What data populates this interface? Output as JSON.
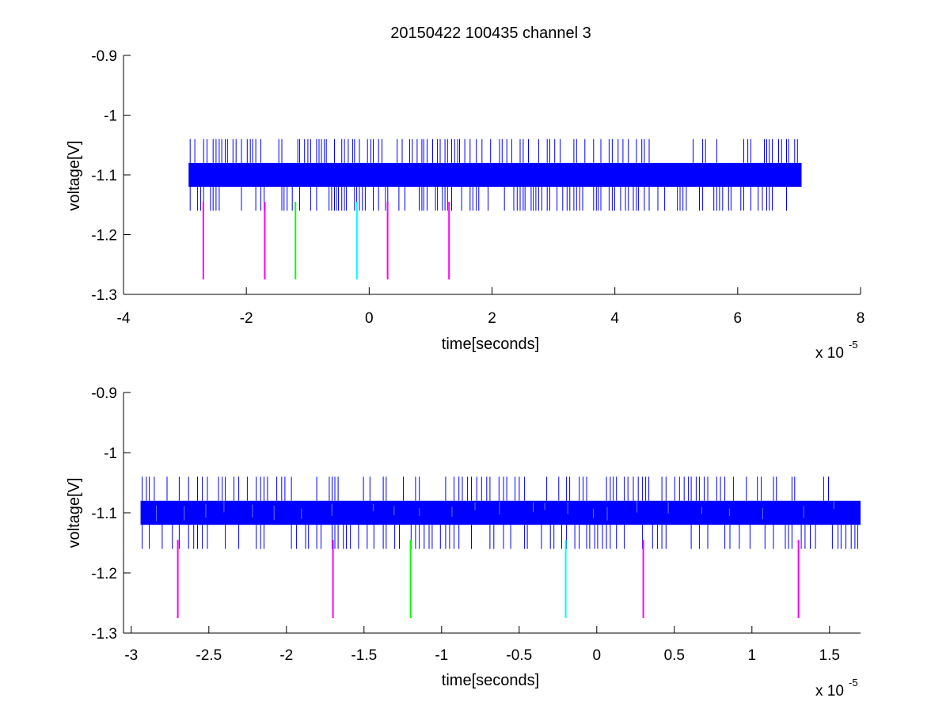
{
  "figure": {
    "title": "20150422 100435 channel 3"
  },
  "chart_data": [
    {
      "type": "line",
      "title": "20150422 100435 channel 3",
      "xlabel": "time[seconds]",
      "ylabel": "voltage[V]",
      "x_multiplier": "x 10",
      "x_multiplier_exp": "-5",
      "xlim": [
        -4,
        8
      ],
      "ylim": [
        -1.3,
        -0.9
      ],
      "x_ticks": [
        -4,
        -2,
        0,
        2,
        4,
        6,
        8
      ],
      "x_tick_labels": [
        "-4",
        "-2",
        "0",
        "2",
        "4",
        "6",
        "8"
      ],
      "y_ticks": [
        -1.3,
        -1.2,
        -1.1,
        -1,
        -0.9
      ],
      "y_tick_labels": [
        "-1.3",
        "-1.2",
        "-1.1",
        "-1",
        "-0.9"
      ],
      "grid": false,
      "series": [
        {
          "color": "#0000ff",
          "x_range": [
            -2.94,
            7.04
          ],
          "core_band": [
            -1.12,
            -1.08
          ],
          "spike_range": [
            -1.16,
            -1.04
          ],
          "dense": true
        }
      ],
      "markers": {
        "y_range": [
          -1.275,
          -1.145
        ],
        "lines": [
          {
            "x": -2.7,
            "color": "#ff00ff"
          },
          {
            "x": -1.7,
            "color": "#ff00ff"
          },
          {
            "x": -1.2,
            "color": "#00ff00"
          },
          {
            "x": -0.2,
            "color": "#00ffff"
          },
          {
            "x": 0.3,
            "color": "#ff00ff"
          },
          {
            "x": 1.3,
            "color": "#ff00ff"
          }
        ]
      }
    },
    {
      "type": "line",
      "title": "",
      "xlabel": "time[seconds]",
      "ylabel": "voltage[V]",
      "x_multiplier": "x 10",
      "x_multiplier_exp": "-5",
      "xlim": [
        -3.05,
        1.7
      ],
      "ylim": [
        -1.3,
        -0.9
      ],
      "x_ticks": [
        -3,
        -2.5,
        -2,
        -1.5,
        -1,
        -0.5,
        0,
        0.5,
        1,
        1.5
      ],
      "x_tick_labels": [
        "-3",
        "-2.5",
        "-2",
        "-1.5",
        "-1",
        "-0.5",
        "0",
        "0.5",
        "1",
        "1.5"
      ],
      "y_ticks": [
        -1.3,
        -1.2,
        -1.1,
        -1,
        -0.9
      ],
      "y_tick_labels": [
        "-1.3",
        "-1.2",
        "-1.1",
        "-1",
        "-0.9"
      ],
      "grid": false,
      "series": [
        {
          "color": "#0000ff",
          "x_range": [
            -2.94,
            1.7
          ],
          "core_band": [
            -1.12,
            -1.08
          ],
          "spike_range": [
            -1.16,
            -1.04
          ],
          "dense": false
        }
      ],
      "markers": {
        "y_range": [
          -1.275,
          -1.145
        ],
        "lines": [
          {
            "x": -2.7,
            "color": "#ff00ff"
          },
          {
            "x": -1.7,
            "color": "#ff00ff"
          },
          {
            "x": -1.2,
            "color": "#00ff00"
          },
          {
            "x": -0.2,
            "color": "#00ffff"
          },
          {
            "x": 0.3,
            "color": "#ff00ff"
          },
          {
            "x": 1.3,
            "color": "#ff00ff"
          }
        ]
      }
    }
  ]
}
